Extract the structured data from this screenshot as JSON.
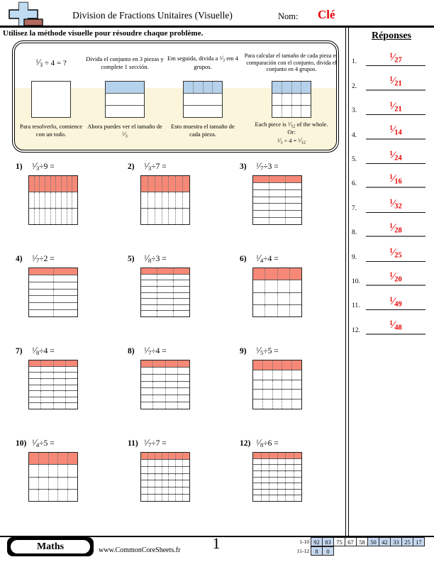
{
  "colors": {
    "answer_red": "#e80000",
    "grid_shade_salmon": "#f58876",
    "example_shade_blue": "#b5d1eb",
    "example_bg_cream": "#faf5db",
    "score_cell_blue": "#c6d9f1",
    "logo_brick": "#b26b60",
    "logo_blue": "#bfdcf2"
  },
  "symbols": {
    "slash": "⁄"
  },
  "header": {
    "title": "Division de Fractions Unitaires (Visuelle)",
    "name_label": "Nom:",
    "name_value": "Clé",
    "instruction": "Utilisez la méthode visuelle pour résoudre chaque problème."
  },
  "example": {
    "panels": [
      {
        "eq_num": "1",
        "eq_den": "3",
        "eq_rest": " ÷ 4 = ?",
        "bottom": "Para resolverlo, comience con un todo.",
        "square": {
          "rows": 1,
          "cols": 1,
          "shaded_top": false,
          "dotted": "none"
        }
      },
      {
        "top": "Divida el conjunto en 3 piezas y complete 1 sección.",
        "bottom_pre": "Ahora puedes ver el tamaño de ",
        "bottom_num": "1",
        "bottom_den": "3",
        "square": {
          "rows": 3,
          "cols": 1,
          "shaded_top": true,
          "dotted": "none"
        }
      },
      {
        "top_pre": "Em seguida, divida a ",
        "top_num": "1",
        "top_den": "3",
        "top_post": " em 4 grupos.",
        "bottom": "Esto muestra el tamaño de cada pieza.",
        "square": {
          "rows": 3,
          "cols": 4,
          "shaded_top": true,
          "dotted": "top"
        }
      },
      {
        "top": "Para calcular el tamaño de cada pieza en comparación con el conjunto, divida el conjunto en 4 grupos.",
        "l1_pre": "Each piece is ",
        "l1_num": "1",
        "l1_den": "12",
        "l1_post": " of the whole.",
        "l2": "Or:",
        "l3_n1": "1",
        "l3_d1": "3",
        "l3_mid": " ÷ 4 = ",
        "l3_n2": "1",
        "l3_d2": "12",
        "square": {
          "rows": 3,
          "cols": 4,
          "shaded_top": true,
          "dotted": "all"
        }
      }
    ]
  },
  "problems": [
    {
      "label": "1)",
      "numerator": "1",
      "denominator": "3",
      "rest": "÷9 =",
      "rows": 3,
      "cols": 9
    },
    {
      "label": "2)",
      "numerator": "1",
      "denominator": "3",
      "rest": "÷7 =",
      "rows": 3,
      "cols": 7
    },
    {
      "label": "3)",
      "numerator": "1",
      "denominator": "7",
      "rest": "÷3 =",
      "rows": 7,
      "cols": 3
    },
    {
      "label": "4)",
      "numerator": "1",
      "denominator": "7",
      "rest": "÷2 =",
      "rows": 7,
      "cols": 2
    },
    {
      "label": "5)",
      "numerator": "1",
      "denominator": "8",
      "rest": "÷3 =",
      "rows": 8,
      "cols": 3
    },
    {
      "label": "6)",
      "numerator": "1",
      "denominator": "4",
      "rest": "÷4 =",
      "rows": 4,
      "cols": 4
    },
    {
      "label": "7)",
      "numerator": "1",
      "denominator": "8",
      "rest": "÷4 =",
      "rows": 8,
      "cols": 4
    },
    {
      "label": "8)",
      "numerator": "1",
      "denominator": "7",
      "rest": "÷4 =",
      "rows": 7,
      "cols": 4
    },
    {
      "label": "9)",
      "numerator": "1",
      "denominator": "5",
      "rest": "÷5 =",
      "rows": 5,
      "cols": 5
    },
    {
      "label": "10)",
      "numerator": "1",
      "denominator": "4",
      "rest": "÷5 =",
      "rows": 4,
      "cols": 5
    },
    {
      "label": "11)",
      "numerator": "1",
      "denominator": "7",
      "rest": "÷7 =",
      "rows": 7,
      "cols": 7
    },
    {
      "label": "12)",
      "numerator": "1",
      "denominator": "8",
      "rest": "÷6 =",
      "rows": 8,
      "cols": 6
    }
  ],
  "answers_column": {
    "title": "Réponses",
    "items": [
      {
        "label": "1.",
        "numerator": "1",
        "denominator": "27"
      },
      {
        "label": "2.",
        "numerator": "1",
        "denominator": "21"
      },
      {
        "label": "3.",
        "numerator": "1",
        "denominator": "21"
      },
      {
        "label": "4.",
        "numerator": "1",
        "denominator": "14"
      },
      {
        "label": "5.",
        "numerator": "1",
        "denominator": "24"
      },
      {
        "label": "6.",
        "numerator": "1",
        "denominator": "16"
      },
      {
        "label": "7.",
        "numerator": "1",
        "denominator": "32"
      },
      {
        "label": "8.",
        "numerator": "1",
        "denominator": "28"
      },
      {
        "label": "9.",
        "numerator": "1",
        "denominator": "25"
      },
      {
        "label": "10.",
        "numerator": "1",
        "denominator": "20"
      },
      {
        "label": "11.",
        "numerator": "1",
        "denominator": "49"
      },
      {
        "label": "12.",
        "numerator": "1",
        "denominator": "48"
      }
    ]
  },
  "footer": {
    "logo_text": "Maths",
    "url": "www.CommonCoreSheets.fr",
    "page_number": "1",
    "score_rows": [
      {
        "label": "1-10",
        "values": [
          "92",
          "83",
          "75",
          "67",
          "58",
          "50",
          "42",
          "33",
          "25",
          "17"
        ],
        "highlighted": [
          1,
          1,
          0,
          0,
          0,
          1,
          1,
          1,
          1,
          1
        ]
      },
      {
        "label": "11-12",
        "values": [
          "8",
          "0"
        ],
        "highlighted": [
          1,
          1
        ]
      }
    ]
  }
}
